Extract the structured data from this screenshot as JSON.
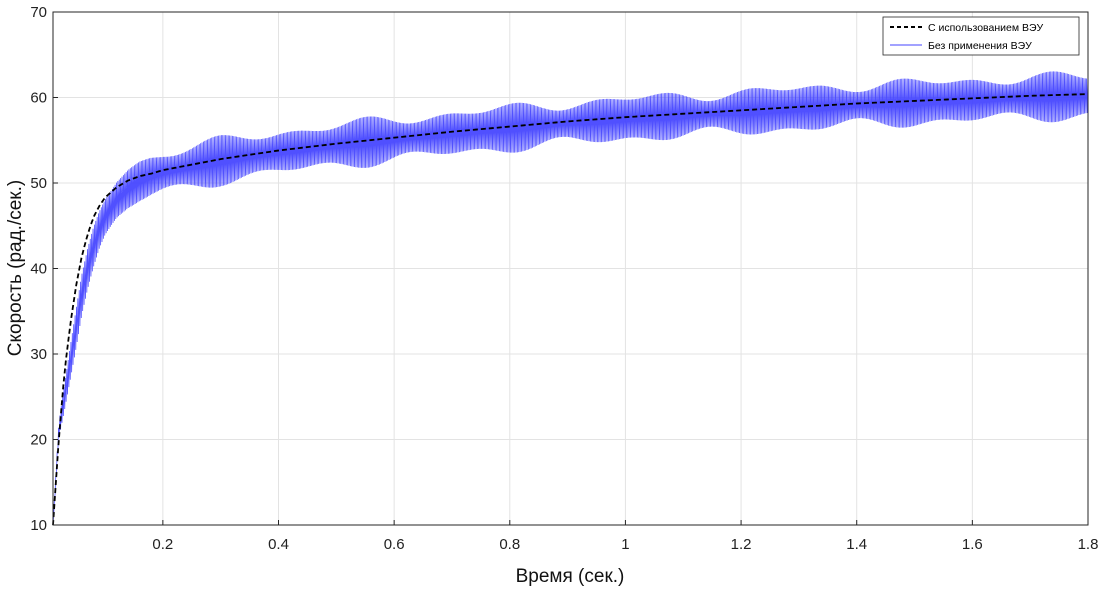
{
  "chart_data": {
    "type": "line",
    "title": "",
    "xlabel": "Время (сек.)",
    "ylabel": "Скорость (рад./сек.)",
    "xlim": [
      0.01,
      1.8
    ],
    "ylim": [
      10,
      70
    ],
    "x_ticks": [
      0.2,
      0.4,
      0.6,
      0.8,
      1,
      1.2,
      1.4,
      1.6,
      1.8
    ],
    "y_ticks": [
      10,
      20,
      30,
      40,
      50,
      60,
      70
    ],
    "grid": true,
    "legend_position": "top-right",
    "series": [
      {
        "name": "С использованием ВЭУ",
        "style": "dashed",
        "color": "#000000",
        "x": [
          0.01,
          0.02,
          0.03,
          0.04,
          0.05,
          0.06,
          0.07,
          0.08,
          0.09,
          0.1,
          0.12,
          0.14,
          0.16,
          0.18,
          0.2,
          0.3,
          0.4,
          0.5,
          0.6,
          0.7,
          0.8,
          0.9,
          1.0,
          1.1,
          1.2,
          1.3,
          1.4,
          1.5,
          1.6,
          1.7,
          1.8
        ],
        "y": [
          10,
          20,
          28,
          33.5,
          38,
          41.5,
          44,
          46,
          47.3,
          48.3,
          49.5,
          50.3,
          50.8,
          51.1,
          51.5,
          52.8,
          53.8,
          54.6,
          55.3,
          56.0,
          56.6,
          57.2,
          57.7,
          58.1,
          58.5,
          58.9,
          59.3,
          59.6,
          59.9,
          60.2,
          60.4
        ]
      },
      {
        "name": "Без применения ВЭУ",
        "style": "oscillating",
        "color": "#3d3dff",
        "x": [
          0.01,
          0.02,
          0.03,
          0.04,
          0.05,
          0.06,
          0.07,
          0.08,
          0.09,
          0.1,
          0.12,
          0.14,
          0.16,
          0.18,
          0.2,
          0.3,
          0.4,
          0.5,
          0.6,
          0.7,
          0.8,
          0.9,
          1.0,
          1.1,
          1.2,
          1.3,
          1.4,
          1.5,
          1.6,
          1.7,
          1.8
        ],
        "y": [
          10,
          21,
          25,
          29,
          33,
          37,
          40,
          42.5,
          44.5,
          46,
          48,
          49.3,
          50.2,
          50.8,
          51.2,
          52.6,
          53.6,
          54.4,
          55.1,
          55.8,
          56.4,
          57.0,
          57.5,
          57.9,
          58.3,
          58.7,
          59.1,
          59.4,
          59.7,
          60.0,
          60.2
        ],
        "amplitude": [
          0,
          1,
          1.6,
          2.0,
          2.4,
          2.6,
          2.8,
          3.0,
          3.0,
          3.0,
          3.0,
          3.0,
          3.0,
          3.0,
          3.0,
          3.0,
          3.0,
          3.0,
          3.0,
          3.0,
          3.0,
          3.0,
          3.0,
          3.0,
          3.0,
          3.0,
          3.0,
          3.0,
          3.0,
          3.0,
          3.0
        ]
      }
    ]
  }
}
